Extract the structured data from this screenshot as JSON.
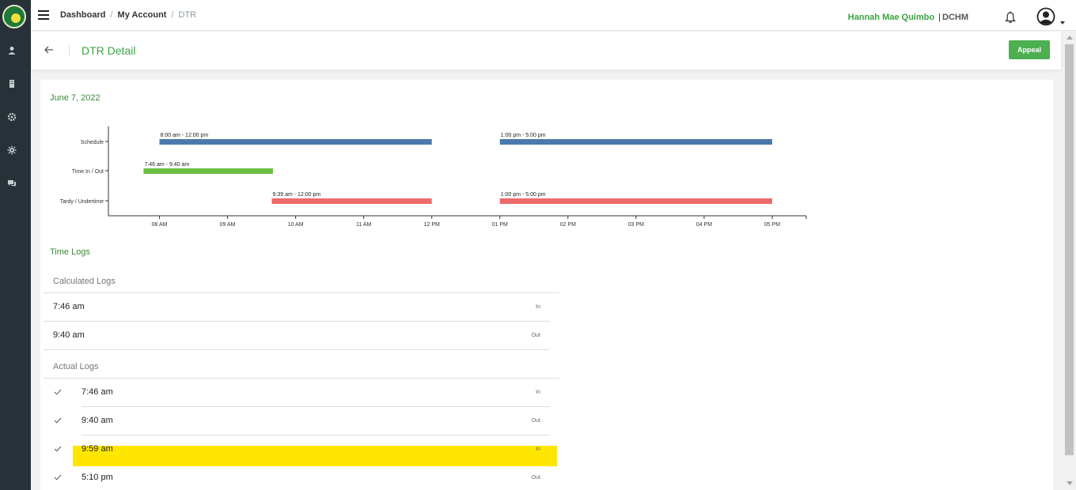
{
  "breadcrumb": {
    "item1": "Dashboard",
    "item2": "My Account",
    "current": "DTR",
    "sep": "/"
  },
  "user": {
    "name": "Hannah Mae Quimbo",
    "sep": "|",
    "org": "DCHM"
  },
  "icons": {
    "logo": "school-seal-logo",
    "menu": "hamburger-menu-icon",
    "bell": "bell-icon",
    "avatar": "user-avatar-icon",
    "sidebar": [
      "person-icon",
      "building-icon",
      "gear-icon",
      "cog-icon",
      "chat-icon"
    ],
    "back": "back-arrow-icon",
    "check": "check-icon"
  },
  "header": {
    "title": "DTR Detail",
    "appeal_label": "Appeal"
  },
  "date": "June 7, 2022",
  "chart_data": {
    "type": "timeline",
    "rows": [
      "Schedule",
      "Time In / Out",
      "Tardy / Undertime"
    ],
    "x_ticks": [
      "08 AM",
      "09 AM",
      "10 AM",
      "11 AM",
      "12 PM",
      "01 PM",
      "02 PM",
      "03 PM",
      "04 PM",
      "05 PM"
    ],
    "x_range_hours": [
      7.25,
      17.5
    ],
    "bars": [
      {
        "row": "Schedule",
        "start": 8.0,
        "end": 12.0,
        "label": "8:00 am - 12:00 pm",
        "color": "#4a7aab"
      },
      {
        "row": "Schedule",
        "start": 13.0,
        "end": 17.0,
        "label": "1:00 pm - 5:00 pm",
        "color": "#4a7aab"
      },
      {
        "row": "Time In / Out",
        "start": 7.7667,
        "end": 9.6667,
        "label": "7:46 am - 9:40 am",
        "color": "#6abf40"
      },
      {
        "row": "Tardy / Undertime",
        "start": 9.65,
        "end": 12.0,
        "label": "9:39 am - 12:00 pm",
        "color": "#ee6b6b"
      },
      {
        "row": "Tardy / Undertime",
        "start": 13.0,
        "end": 17.0,
        "label": "1:00 pm - 5:00 pm",
        "color": "#ee6b6b"
      }
    ]
  },
  "time_logs": {
    "title": "Time Logs",
    "calculated_title": "Calculated Logs",
    "calculated": [
      {
        "time": "7:46 am",
        "type": "In"
      },
      {
        "time": "9:40 am",
        "type": "Out"
      }
    ],
    "actual_title": "Actual Logs",
    "actual": [
      {
        "time": "7:46 am",
        "type": "In",
        "highlight": false
      },
      {
        "time": "9:40 am",
        "type": "Out",
        "highlight": false
      },
      {
        "time": "9:59 am",
        "type": "In",
        "highlight": true
      },
      {
        "time": "5:10 pm",
        "type": "Out",
        "highlight": false
      }
    ]
  }
}
